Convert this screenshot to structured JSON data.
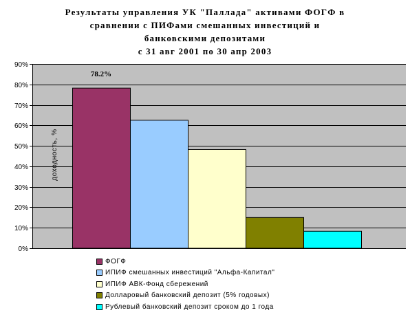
{
  "chart_data": {
    "type": "bar",
    "title": {
      "line1": "Результаты управления УК \"Паллада\" активами ФОГФ в",
      "line2": "сравнении с ПИФами смешанных инвестиций и",
      "line3": "банковскими депозитами",
      "line4": "с 31 авг 2001 по 30 апр 2003"
    },
    "ylabel": "доходность, %",
    "ylim": [
      0,
      90
    ],
    "yticks": [
      "0%",
      "10%",
      "20%",
      "30%",
      "40%",
      "50%",
      "60%",
      "70%",
      "80%",
      "90%"
    ],
    "grid": true,
    "plot_background": "#c0c0c0",
    "series": [
      {
        "name": "ФОГФ",
        "value": 78.2,
        "color": "#993366",
        "data_label": "78.2%"
      },
      {
        "name": "ИПИФ смешанных инвестиций \"Альфа-Капитал\"",
        "value": 62.5,
        "color": "#99ccff"
      },
      {
        "name": "ИПИФ АВК-Фонд сбережений",
        "value": 48.2,
        "color": "#ffffcc"
      },
      {
        "name": "Долларовый банковский депозит (5% годовых)",
        "value": 15.0,
        "color": "#808000"
      },
      {
        "name": "Рублевый банковский депозит сроком до 1 года",
        "value": 8.3,
        "color": "#00ffff"
      }
    ],
    "legend_position": "bottom-left"
  }
}
